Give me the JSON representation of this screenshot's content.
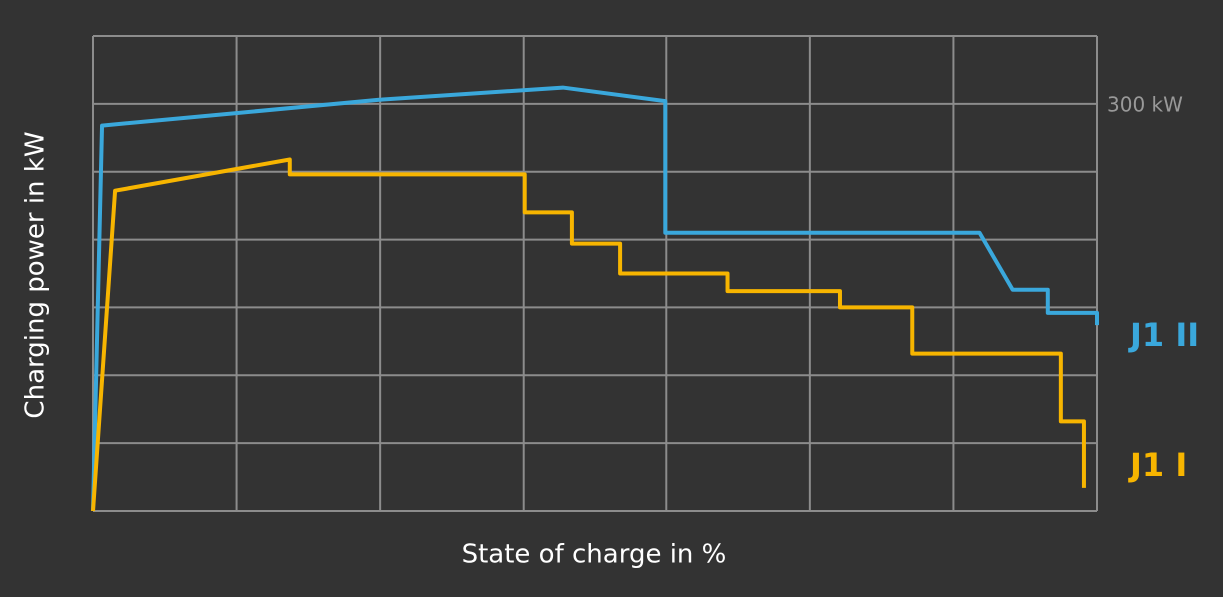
{
  "chart_data": {
    "type": "line",
    "x_label": "State of charge in %",
    "y_label": "Charging power in kW",
    "xlim": [
      0,
      100
    ],
    "xgrid": [
      0,
      14.3,
      28.6,
      42.9,
      57.1,
      71.4,
      85.7,
      100
    ],
    "ylim": [
      0,
      350
    ],
    "ygrid": [
      0,
      50,
      100,
      150,
      200,
      250,
      300,
      350
    ],
    "yticks": [
      {
        "value": 300,
        "label": "300 kW"
      }
    ],
    "grid": true,
    "series": [
      {
        "name": "J1 II",
        "color": "#3aa8dc",
        "x": [
          0,
          0.9,
          28.5,
          46.8,
          57,
          57,
          88.3,
          91.6,
          95.1,
          95.1,
          100,
          100
        ],
        "values": [
          0,
          284,
          303,
          312,
          302,
          205,
          205,
          163,
          163,
          146,
          146,
          137
        ]
      },
      {
        "name": "J1 I",
        "color": "#f7b500",
        "x": [
          0,
          2.2,
          19.6,
          19.6,
          43,
          43,
          47.7,
          47.7,
          52.5,
          52.5,
          63.2,
          63.2,
          74.4,
          74.4,
          81.6,
          81.6,
          96.4,
          96.4,
          98.7,
          98.7
        ],
        "values": [
          0,
          236,
          259,
          248,
          248,
          220,
          220,
          197,
          197,
          175,
          175,
          162,
          162,
          150,
          150,
          116,
          116,
          66,
          66,
          17
        ]
      }
    ]
  }
}
